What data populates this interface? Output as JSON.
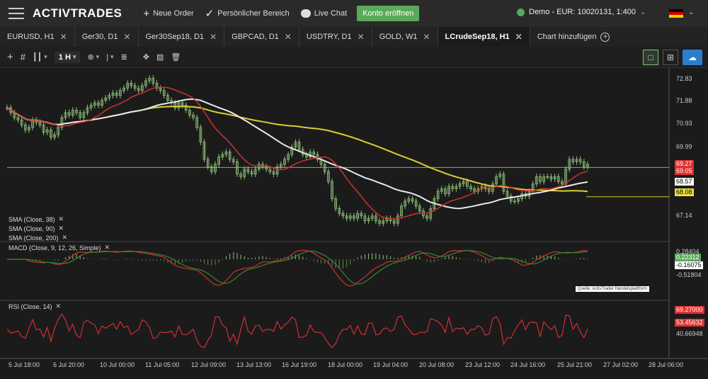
{
  "header": {
    "logo": "ACTIVTRADES",
    "new_order": "Neue Order",
    "personal_area": "Persönlicher Bereich",
    "live_chat": "Live Chat",
    "open_account": "Konto eröffnen",
    "account": "Demo - EUR: 10020131, 1:400"
  },
  "tabs": [
    {
      "label": "EURUSD, H1"
    },
    {
      "label": "Ger30, D1"
    },
    {
      "label": "Ger30Sep18, D1"
    },
    {
      "label": "GBPCAD, D1"
    },
    {
      "label": "USDTRY, D1"
    },
    {
      "label": "GOLD, W1"
    },
    {
      "label": "LCrudeSep18, H1"
    }
  ],
  "add_chart": "Chart hinzufügen",
  "toolbar": {
    "timeframe": "1 H"
  },
  "chart_data": {
    "type": "candlestick",
    "price_axis": [
      "72.83",
      "71.88",
      "70.93",
      "69.99",
      "67.14"
    ],
    "price_boxes": {
      "last": "69.27",
      "last_secondary": "69.05",
      "sma_white": "68.57",
      "sma_yellow": "68.08"
    },
    "indicators": [
      "SMA (Close, 38)",
      "SMA (Close, 90)",
      "SMA (Close, 200)"
    ],
    "macd": {
      "label": "MACD (Close, 9, 12, 26, Simple)",
      "axis": [
        "0.28404",
        "0.22312",
        "-0.16075",
        "-0.51804"
      ]
    },
    "rsi": {
      "label": "RSI (Close, 14)",
      "axis": [
        "69.27000",
        "53.45632",
        "40.66948"
      ]
    },
    "x_labels": [
      "5 Jul 18:00",
      "6 Jul 20:00",
      "10 Jul 00:00",
      "11 Jul 05:00",
      "12 Jul 09:00",
      "13 Jul 13:00",
      "16 Jul 19:00",
      "18 Jul 00:00",
      "19 Jul 04:00",
      "20 Jul 08:00",
      "23 Jul 12:00",
      "24 Jul 16:00",
      "25 Jul 21:00",
      "27 Jul 02:00",
      "28 Jul 06:00"
    ],
    "source": "Quelle: ActivTrader Handelsplattform",
    "colors": {
      "up": "#8fc17a",
      "sma38": "#d03030",
      "sma90": "#e8e8e8",
      "sma200": "#d8d030",
      "line_orange": "#d8904a"
    },
    "close_path": [
      71.7,
      71.5,
      71.3,
      71.2,
      71.0,
      70.8,
      70.9,
      71.2,
      71.1,
      71.0,
      70.7,
      70.8,
      70.5,
      70.6,
      70.9,
      71.3,
      71.5,
      71.4,
      71.6,
      71.5,
      71.3,
      71.5,
      71.7,
      71.8,
      71.9,
      71.8,
      72.0,
      72.1,
      72.2,
      72.3,
      72.2,
      72.4,
      72.5,
      72.7,
      72.6,
      72.5,
      72.4,
      72.6,
      72.8,
      72.9,
      72.7,
      72.5,
      72.4,
      72.2,
      72.0,
      71.9,
      71.7,
      71.9,
      71.8,
      71.6,
      71.4,
      71.3,
      70.9,
      70.3,
      69.6,
      69.3,
      69.1,
      69.4,
      69.7,
      69.8,
      69.9,
      69.6,
      69.5,
      69.0,
      68.9,
      69.2,
      69.1,
      69.0,
      69.2,
      69.4,
      69.3,
      69.2,
      69.1,
      69.0,
      69.3,
      69.4,
      69.6,
      69.8,
      70.1,
      70.3,
      70.0,
      69.8,
      69.7,
      69.9,
      69.8,
      69.6,
      69.4,
      69.1,
      68.7,
      68.0,
      67.6,
      67.4,
      67.3,
      67.2,
      67.3,
      67.2,
      67.4,
      67.3,
      67.1,
      67.2,
      67.3,
      67.1,
      67.0,
      67.1,
      67.2,
      67.1,
      67.0,
      67.3,
      67.7,
      67.9,
      68.0,
      67.9,
      67.7,
      67.5,
      67.3,
      67.2,
      67.6,
      68.0,
      68.3,
      68.4,
      68.2,
      68.5,
      68.4,
      68.5,
      68.6,
      68.7,
      68.5,
      68.4,
      68.3,
      68.4,
      68.5,
      68.4,
      68.3,
      68.6,
      68.9,
      69.0,
      68.3,
      68.1,
      67.9,
      67.9,
      68.0,
      68.2,
      68.1,
      68.3,
      68.6,
      68.9,
      68.7,
      68.9,
      68.9,
      68.8,
      68.9,
      68.7,
      68.6,
      69.2,
      69.6,
      69.5,
      69.6,
      69.5,
      69.3,
      69.4
    ]
  }
}
